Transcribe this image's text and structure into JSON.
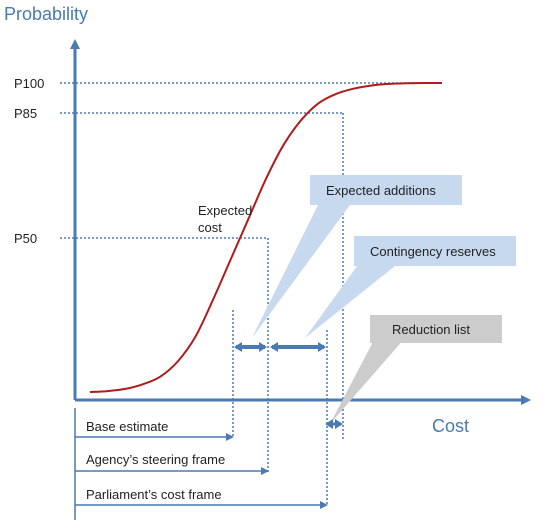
{
  "chart_data": {
    "type": "line",
    "title": "",
    "ylabel": "Probability",
    "xlabel": "Cost",
    "y_ticks": [
      "P100",
      "P85",
      "P50"
    ],
    "series": [
      {
        "x": [
          0.0,
          0.05,
          0.1,
          0.15,
          0.2,
          0.25,
          0.3,
          0.35,
          0.4,
          0.45,
          0.5,
          0.55,
          0.6,
          0.65,
          0.7,
          0.75,
          0.8,
          0.85,
          0.9,
          0.95,
          1.0
        ],
        "y": [
          0.0,
          0.003,
          0.01,
          0.025,
          0.05,
          0.1,
          0.18,
          0.3,
          0.43,
          0.56,
          0.69,
          0.8,
          0.88,
          0.935,
          0.965,
          0.982,
          0.992,
          0.997,
          0.999,
          1.0,
          1.0
        ]
      }
    ],
    "color": "#b01c1c",
    "axis_color": "#4a7ab3",
    "annotations": {
      "expected_cost": "Expected\ncost",
      "callouts": [
        {
          "label": "Expected additions",
          "fill": "#c7d9ee"
        },
        {
          "label": "Contingency reserves",
          "fill": "#c7d9ee"
        },
        {
          "label": "Reduction list",
          "fill": "#cccccc"
        }
      ],
      "frames": [
        "Base estimate",
        "Agency’s steering frame",
        "Parliament’s cost frame"
      ]
    }
  }
}
